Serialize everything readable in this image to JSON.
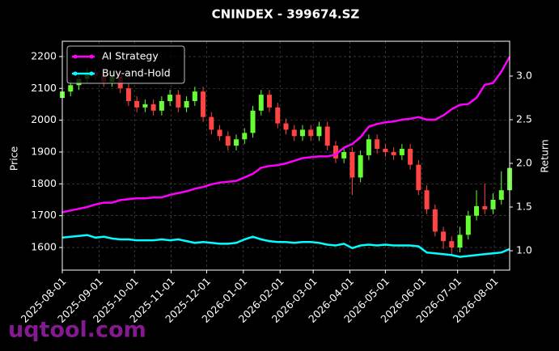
{
  "chart_data": {
    "type": "candlestick",
    "title": "CNINDEX - 399674.SZ",
    "ylabel": "Price",
    "y2label": "Return",
    "x": [
      "2025-08-01",
      "2025-08-08",
      "2025-08-15",
      "2025-08-22",
      "2025-08-29",
      "2025-09-05",
      "2025-09-12",
      "2025-09-19",
      "2025-09-26",
      "2025-10-03",
      "2025-10-10",
      "2025-10-17",
      "2025-10-24",
      "2025-10-31",
      "2025-11-07",
      "2025-11-14",
      "2025-11-21",
      "2025-11-28",
      "2025-12-05",
      "2025-12-12",
      "2025-12-19",
      "2025-12-26",
      "2026-01-02",
      "2026-01-09",
      "2026-01-16",
      "2026-01-23",
      "2026-01-30",
      "2026-02-06",
      "2026-02-13",
      "2026-02-20",
      "2026-02-27",
      "2026-03-06",
      "2026-03-13",
      "2026-03-20",
      "2026-03-27",
      "2026-04-03",
      "2026-04-10",
      "2026-04-17",
      "2026-04-24",
      "2026-05-01",
      "2026-05-08",
      "2026-05-15",
      "2026-05-22",
      "2026-05-29",
      "2026-06-05",
      "2026-06-12",
      "2026-06-19",
      "2026-06-26",
      "2026-07-03",
      "2026-07-10",
      "2026-07-17",
      "2026-07-24",
      "2026-07-31",
      "2026-08-07",
      "2026-08-14"
    ],
    "open": [
      2070,
      2090,
      2110,
      2130,
      2150,
      2140,
      2120,
      2140,
      2100,
      2060,
      2040,
      2050,
      2030,
      2060,
      2080,
      2040,
      2060,
      2090,
      2010,
      1970,
      1950,
      1920,
      1940,
      1960,
      2030,
      2080,
      2040,
      1990,
      1970,
      1950,
      1970,
      1950,
      1980,
      1920,
      1880,
      1900,
      1820,
      1890,
      1940,
      1910,
      1900,
      1890,
      1910,
      1860,
      1780,
      1720,
      1650,
      1620,
      1600,
      1640,
      1700,
      1730,
      1720,
      1750,
      1780
    ],
    "high": [
      2105,
      2125,
      2145,
      2165,
      2165,
      2155,
      2155,
      2155,
      2115,
      2075,
      2065,
      2065,
      2075,
      2095,
      2095,
      2075,
      2105,
      2105,
      2025,
      1985,
      1965,
      1955,
      1975,
      2045,
      2095,
      2095,
      2055,
      2005,
      1985,
      1985,
      1985,
      1995,
      1995,
      1935,
      1915,
      1915,
      1905,
      1955,
      1955,
      1925,
      1915,
      1925,
      1925,
      1875,
      1795,
      1735,
      1665,
      1635,
      1665,
      1715,
      1780,
      1800,
      1770,
      1840,
      1870
    ],
    "low": [
      2055,
      2075,
      2095,
      2115,
      2125,
      2105,
      2105,
      2085,
      2045,
      2025,
      2025,
      2015,
      2015,
      2045,
      2025,
      2025,
      2045,
      1995,
      1955,
      1935,
      1905,
      1905,
      1925,
      1945,
      2015,
      2025,
      1975,
      1955,
      1935,
      1935,
      1935,
      1935,
      1905,
      1865,
      1865,
      1765,
      1805,
      1875,
      1895,
      1885,
      1875,
      1875,
      1845,
      1765,
      1705,
      1635,
      1595,
      1575,
      1585,
      1625,
      1685,
      1705,
      1705,
      1735,
      1765
    ],
    "close": [
      2090,
      2110,
      2130,
      2150,
      2140,
      2120,
      2140,
      2100,
      2060,
      2040,
      2050,
      2030,
      2060,
      2080,
      2040,
      2060,
      2090,
      2010,
      1970,
      1950,
      1920,
      1940,
      1960,
      2030,
      2080,
      2040,
      1990,
      1970,
      1950,
      1970,
      1950,
      1980,
      1920,
      1880,
      1900,
      1820,
      1890,
      1940,
      1910,
      1900,
      1890,
      1910,
      1860,
      1780,
      1720,
      1650,
      1620,
      1600,
      1640,
      1700,
      1730,
      1720,
      1750,
      1780,
      1850
    ],
    "up_color": "#66ff33",
    "down_color": "#ff4444",
    "series": [
      {
        "name": "AI Strategy",
        "color": "#ff00ff",
        "axis": "y2",
        "values": [
          1.44,
          1.46,
          1.48,
          1.5,
          1.53,
          1.55,
          1.55,
          1.58,
          1.59,
          1.6,
          1.6,
          1.61,
          1.61,
          1.64,
          1.66,
          1.68,
          1.71,
          1.73,
          1.76,
          1.78,
          1.79,
          1.8,
          1.84,
          1.88,
          1.95,
          1.97,
          1.98,
          2.0,
          2.03,
          2.06,
          2.07,
          2.08,
          2.08,
          2.1,
          2.18,
          2.22,
          2.3,
          2.42,
          2.45,
          2.47,
          2.48,
          2.5,
          2.51,
          2.53,
          2.5,
          2.5,
          2.55,
          2.62,
          2.67,
          2.68,
          2.75,
          2.9,
          2.92,
          3.05,
          3.22
        ]
      },
      {
        "name": "Buy-and-Hold",
        "color": "#00ffff",
        "axis": "y2",
        "values": [
          1.15,
          1.16,
          1.17,
          1.18,
          1.15,
          1.16,
          1.14,
          1.13,
          1.13,
          1.12,
          1.12,
          1.12,
          1.13,
          1.12,
          1.13,
          1.11,
          1.09,
          1.1,
          1.09,
          1.08,
          1.08,
          1.09,
          1.13,
          1.16,
          1.13,
          1.11,
          1.1,
          1.1,
          1.09,
          1.1,
          1.1,
          1.09,
          1.07,
          1.06,
          1.08,
          1.03,
          1.06,
          1.07,
          1.06,
          1.07,
          1.06,
          1.06,
          1.06,
          1.05,
          0.98,
          0.97,
          0.96,
          0.95,
          0.93,
          0.94,
          0.95,
          0.96,
          0.97,
          0.98,
          1.02
        ]
      }
    ],
    "xlim": [
      "2025-08-01",
      "2026-08-14"
    ],
    "xticks": [
      "2025-08-01",
      "2025-09-01",
      "2025-10-01",
      "2025-11-01",
      "2025-12-01",
      "2026-01-01",
      "2026-02-01",
      "2026-03-01",
      "2026-04-01",
      "2026-05-01",
      "2026-06-01",
      "2026-07-01",
      "2026-08-01"
    ],
    "ylim": [
      1529,
      2248
    ],
    "yticks": [
      1600,
      1700,
      1800,
      1900,
      2000,
      2100,
      2200
    ],
    "y2lim": [
      0.778,
      3.398
    ],
    "y2ticks": [
      {
        "value": 1,
        "label": "1.0"
      },
      1.5,
      {
        "value": 2,
        "label": "2.0"
      },
      2.5,
      {
        "value": 3,
        "label": "3.0"
      }
    ],
    "grid": true,
    "legend": "upper left"
  },
  "watermark": "uqtool.com"
}
